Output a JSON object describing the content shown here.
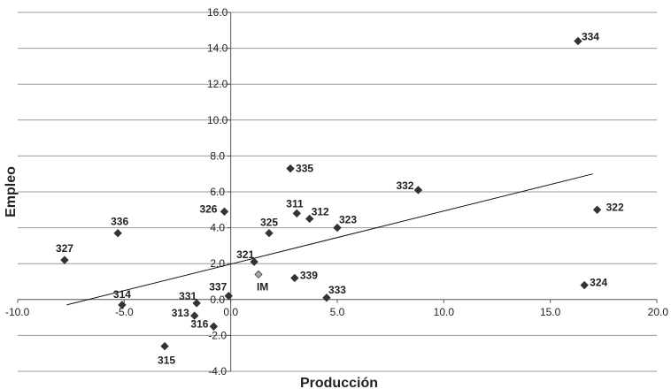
{
  "chart_data": {
    "type": "scatter",
    "xlabel": "Producción",
    "ylabel": "Empleo",
    "xlim": [
      -10,
      20
    ],
    "ylim": [
      -4,
      16
    ],
    "grid": "horizontal",
    "x_ticks": [
      "-10.0",
      "-5.0",
      "0.0",
      "5.0",
      "10.0",
      "15.0",
      "20.0"
    ],
    "y_ticks": [
      "-4.0",
      "-2.0",
      "0.0",
      "2.0",
      "4.0",
      "6.0",
      "8.0",
      "10.0",
      "12.0",
      "14.0",
      "16.0"
    ],
    "marker_color": "#333333",
    "highlight_color": "#aaaaaa",
    "points": [
      {
        "label": "334",
        "x": 16.3,
        "y": 14.4
      },
      {
        "label": "335",
        "x": 2.8,
        "y": 7.3
      },
      {
        "label": "332",
        "x": 8.8,
        "y": 6.1
      },
      {
        "label": "322",
        "x": 17.2,
        "y": 5.0
      },
      {
        "label": "326",
        "x": -0.3,
        "y": 4.9
      },
      {
        "label": "311",
        "x": 3.1,
        "y": 4.8
      },
      {
        "label": "312",
        "x": 3.7,
        "y": 4.5
      },
      {
        "label": "323",
        "x": 5.0,
        "y": 4.0
      },
      {
        "label": "325",
        "x": 1.8,
        "y": 3.7
      },
      {
        "label": "336",
        "x": -5.3,
        "y": 3.7
      },
      {
        "label": "327",
        "x": -7.8,
        "y": 2.2
      },
      {
        "label": "321",
        "x": 1.1,
        "y": 2.1
      },
      {
        "label": "IM",
        "x": 1.3,
        "y": 1.4,
        "highlight": true
      },
      {
        "label": "339",
        "x": 3.0,
        "y": 1.2
      },
      {
        "label": "324",
        "x": 16.6,
        "y": 0.8
      },
      {
        "label": "337",
        "x": -0.1,
        "y": 0.2
      },
      {
        "label": "333",
        "x": 4.5,
        "y": 0.1
      },
      {
        "label": "331",
        "x": -1.6,
        "y": -0.2
      },
      {
        "label": "314",
        "x": -5.1,
        "y": -0.3
      },
      {
        "label": "313",
        "x": -1.7,
        "y": -0.9
      },
      {
        "label": "316",
        "x": -0.8,
        "y": -1.5
      },
      {
        "label": "315",
        "x": -3.1,
        "y": -2.6
      }
    ],
    "trendline": {
      "x": [
        -7.7,
        17.0
      ],
      "y": [
        -0.3,
        7.0
      ]
    }
  }
}
